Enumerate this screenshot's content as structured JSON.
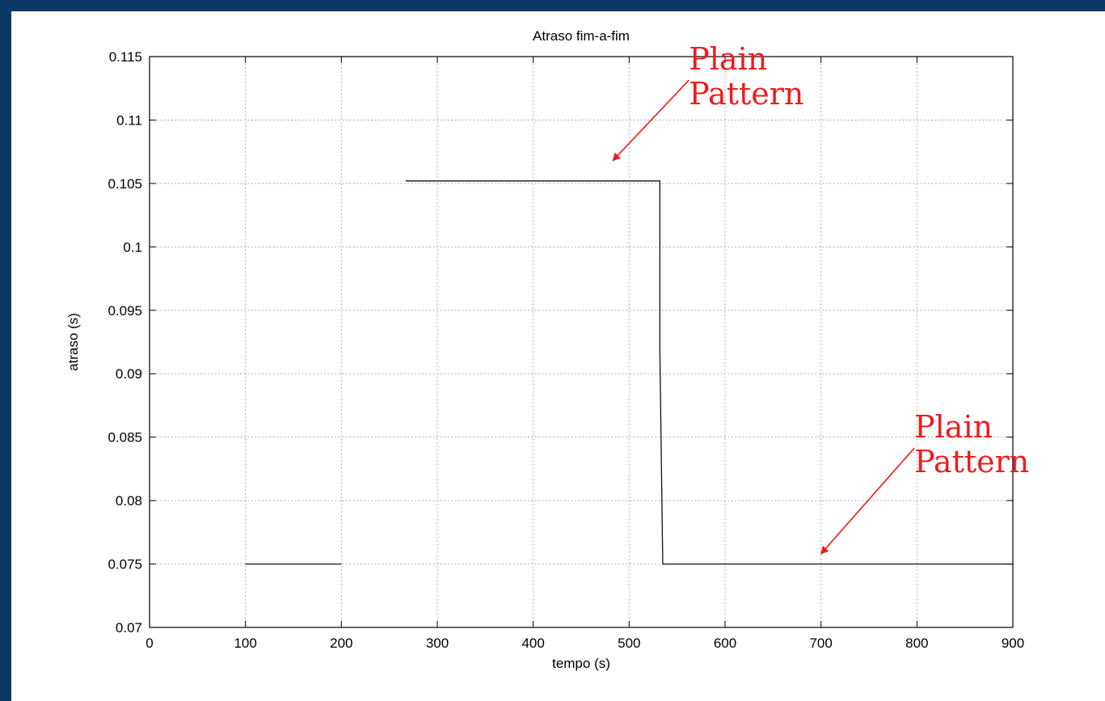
{
  "colors": {
    "frame": "#0b3a66",
    "annotation": "#ee1c1c",
    "line": "#111111",
    "grid": "#9a9a9a"
  },
  "chart_data": {
    "type": "line",
    "title": "Atraso fim-a-fim",
    "xlabel": "tempo (s)",
    "ylabel": "atraso (s)",
    "xlim": [
      0,
      900
    ],
    "ylim": [
      0.07,
      0.115
    ],
    "xticks": [
      0,
      100,
      200,
      300,
      400,
      500,
      600,
      700,
      800,
      900
    ],
    "xtick_labels": [
      "0",
      "100",
      "200",
      "300",
      "400",
      "500",
      "600",
      "700",
      "800",
      "900"
    ],
    "yticks": [
      0.07,
      0.075,
      0.08,
      0.085,
      0.09,
      0.095,
      0.1,
      0.105,
      0.11,
      0.115
    ],
    "ytick_labels": [
      "0.07",
      "0.075",
      "0.08",
      "0.085",
      "0.09",
      "0.095",
      "0.1",
      "0.105",
      "0.11",
      "0.115"
    ],
    "grid": true,
    "series": [
      {
        "segments": [
          {
            "x": [
              100,
              200
            ],
            "y": [
              0.075,
              0.075
            ]
          },
          {
            "x": [
              267,
              532,
              532,
              535,
              900
            ],
            "y": [
              0.1052,
              0.1052,
              0.092,
              0.075,
              0.075
            ]
          }
        ]
      }
    ],
    "annotations": [
      {
        "lines": [
          "Plain",
          "Pattern"
        ],
        "x": 510,
        "y": 0.1125,
        "arrow_to": {
          "x": 483,
          "y": 0.1068
        }
      },
      {
        "lines": [
          "Plain",
          "Pattern"
        ],
        "x": 745,
        "y": 0.0835,
        "arrow_to": {
          "x": 700,
          "y": 0.0758
        }
      }
    ]
  }
}
